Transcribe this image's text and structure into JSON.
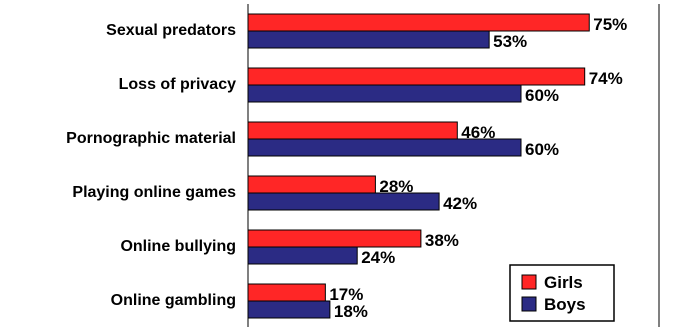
{
  "chart_data": {
    "type": "bar",
    "orientation": "horizontal",
    "categories": [
      "Sexual predators",
      "Loss of privacy",
      "Pornographic material",
      "Playing online games",
      "Online bullying",
      "Online gambling"
    ],
    "series": [
      {
        "name": "Girls",
        "values": [
          75,
          74,
          46,
          28,
          38,
          17
        ]
      },
      {
        "name": "Boys",
        "values": [
          53,
          60,
          60,
          42,
          24,
          18
        ]
      }
    ],
    "value_suffix": "%",
    "xlim": [
      0,
      100
    ],
    "grid": false,
    "legend_position": "bottom-right",
    "title": ""
  },
  "colors": {
    "Girls": "#ff2626",
    "Boys": "#2b2b84",
    "frame": "#000000",
    "title": "#1f2d8a"
  }
}
